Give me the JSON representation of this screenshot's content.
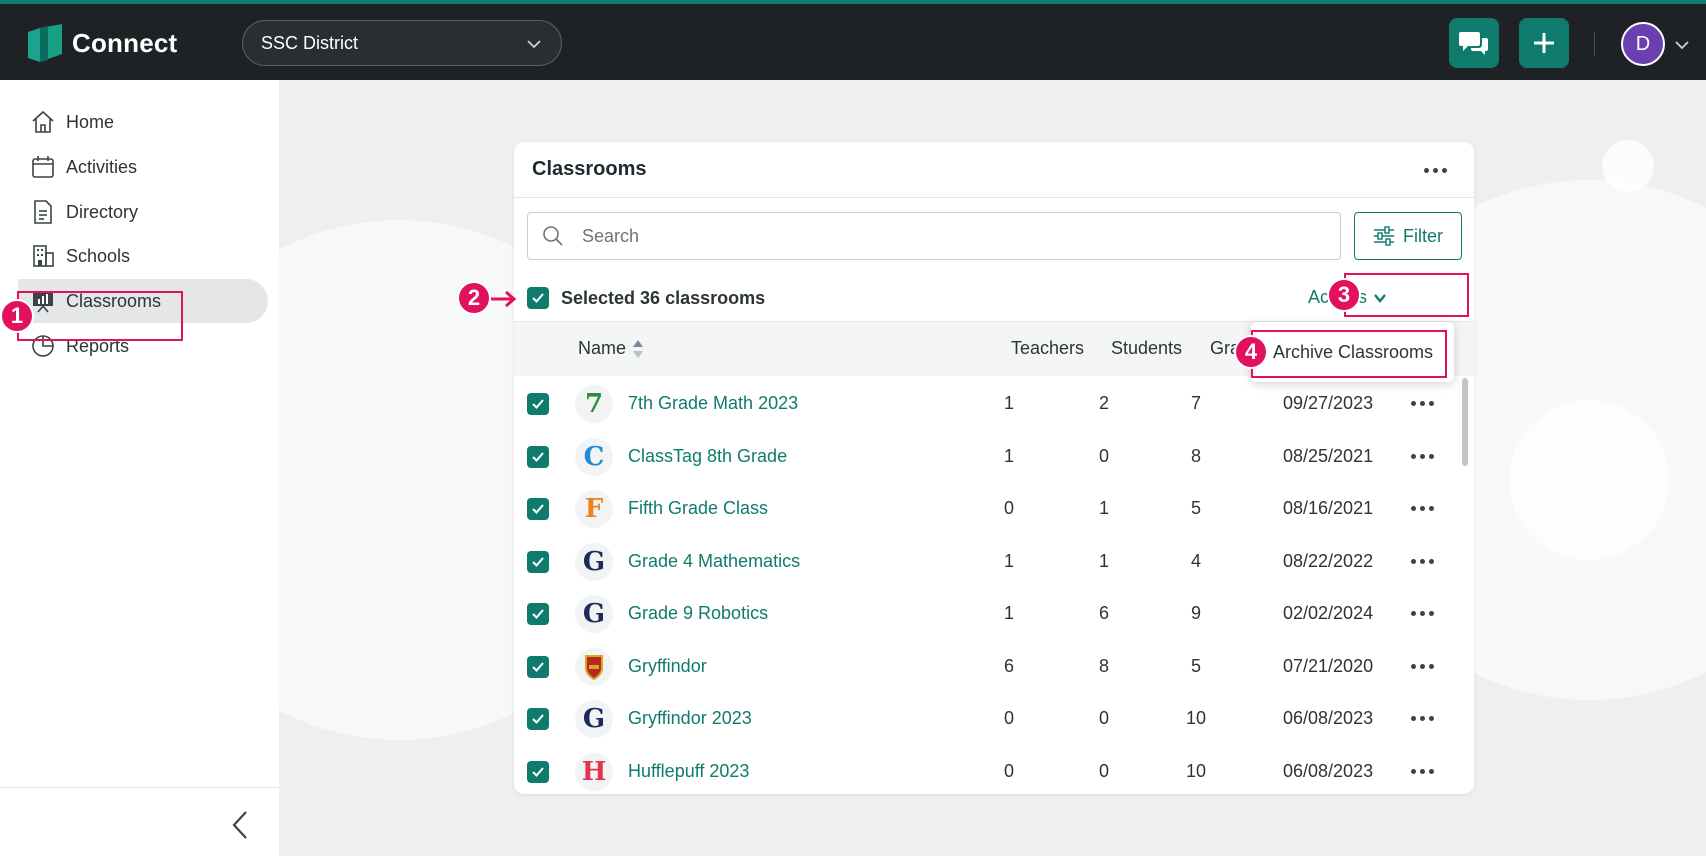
{
  "app": {
    "name": "Connect",
    "district": "SSC District",
    "user_initial": "D"
  },
  "colors": {
    "brand": "#0f7b6c",
    "topbar": "#1e2224",
    "highlight": "#e2115d",
    "avatar": "#6b3fb0"
  },
  "sidebar": {
    "items": [
      {
        "label": "Home",
        "icon": "home-icon"
      },
      {
        "label": "Activities",
        "icon": "calendar-icon"
      },
      {
        "label": "Directory",
        "icon": "document-icon"
      },
      {
        "label": "Schools",
        "icon": "building-icon"
      },
      {
        "label": "Classrooms",
        "icon": "presentation-icon",
        "active": true
      },
      {
        "label": "Reports",
        "icon": "pie-chart-icon"
      }
    ]
  },
  "card": {
    "title": "Classrooms",
    "search_placeholder": "Search",
    "filter_label": "Filter",
    "selected_label": "Selected 36 classrooms",
    "actions_label": "Actions",
    "columns": {
      "name": "Name",
      "teachers": "Teachers",
      "students": "Students",
      "grade": "Gra"
    },
    "rows": [
      {
        "initial": "7",
        "color": "#2e8b3a",
        "name": "7th Grade Math 2023",
        "teachers": "1",
        "students": "2",
        "grade": "7",
        "date": "09/27/2023"
      },
      {
        "initial": "C",
        "color": "#1f8ad6",
        "name": "ClassTag 8th Grade",
        "teachers": "1",
        "students": "0",
        "grade": "8",
        "date": "08/25/2021"
      },
      {
        "initial": "F",
        "color": "#f07f1e",
        "name": "Fifth Grade Class",
        "teachers": "0",
        "students": "1",
        "grade": "5",
        "date": "08/16/2021"
      },
      {
        "initial": "G",
        "color": "#1d2a5c",
        "name": "Grade 4 Mathematics",
        "teachers": "1",
        "students": "1",
        "grade": "4",
        "date": "08/22/2022"
      },
      {
        "initial": "G",
        "color": "#1d2a5c",
        "name": "Grade 9 Robotics",
        "teachers": "1",
        "students": "6",
        "grade": "9",
        "date": "02/02/2024"
      },
      {
        "initial": "",
        "color": "#b8291c",
        "name": "Gryffindor",
        "teachers": "6",
        "students": "8",
        "grade": "5",
        "date": "07/21/2020",
        "crest": true
      },
      {
        "initial": "G",
        "color": "#1d2a5c",
        "name": "Gryffindor 2023",
        "teachers": "0",
        "students": "0",
        "grade": "10",
        "date": "06/08/2023"
      },
      {
        "initial": "H",
        "color": "#e2334f",
        "name": "Hufflepuff 2023",
        "teachers": "0",
        "students": "0",
        "grade": "10",
        "date": "06/08/2023"
      }
    ]
  },
  "dropdown": {
    "item": "Archive Classrooms"
  },
  "annotations": {
    "step1": "1",
    "step2": "2",
    "step3": "3",
    "step4": "4"
  }
}
